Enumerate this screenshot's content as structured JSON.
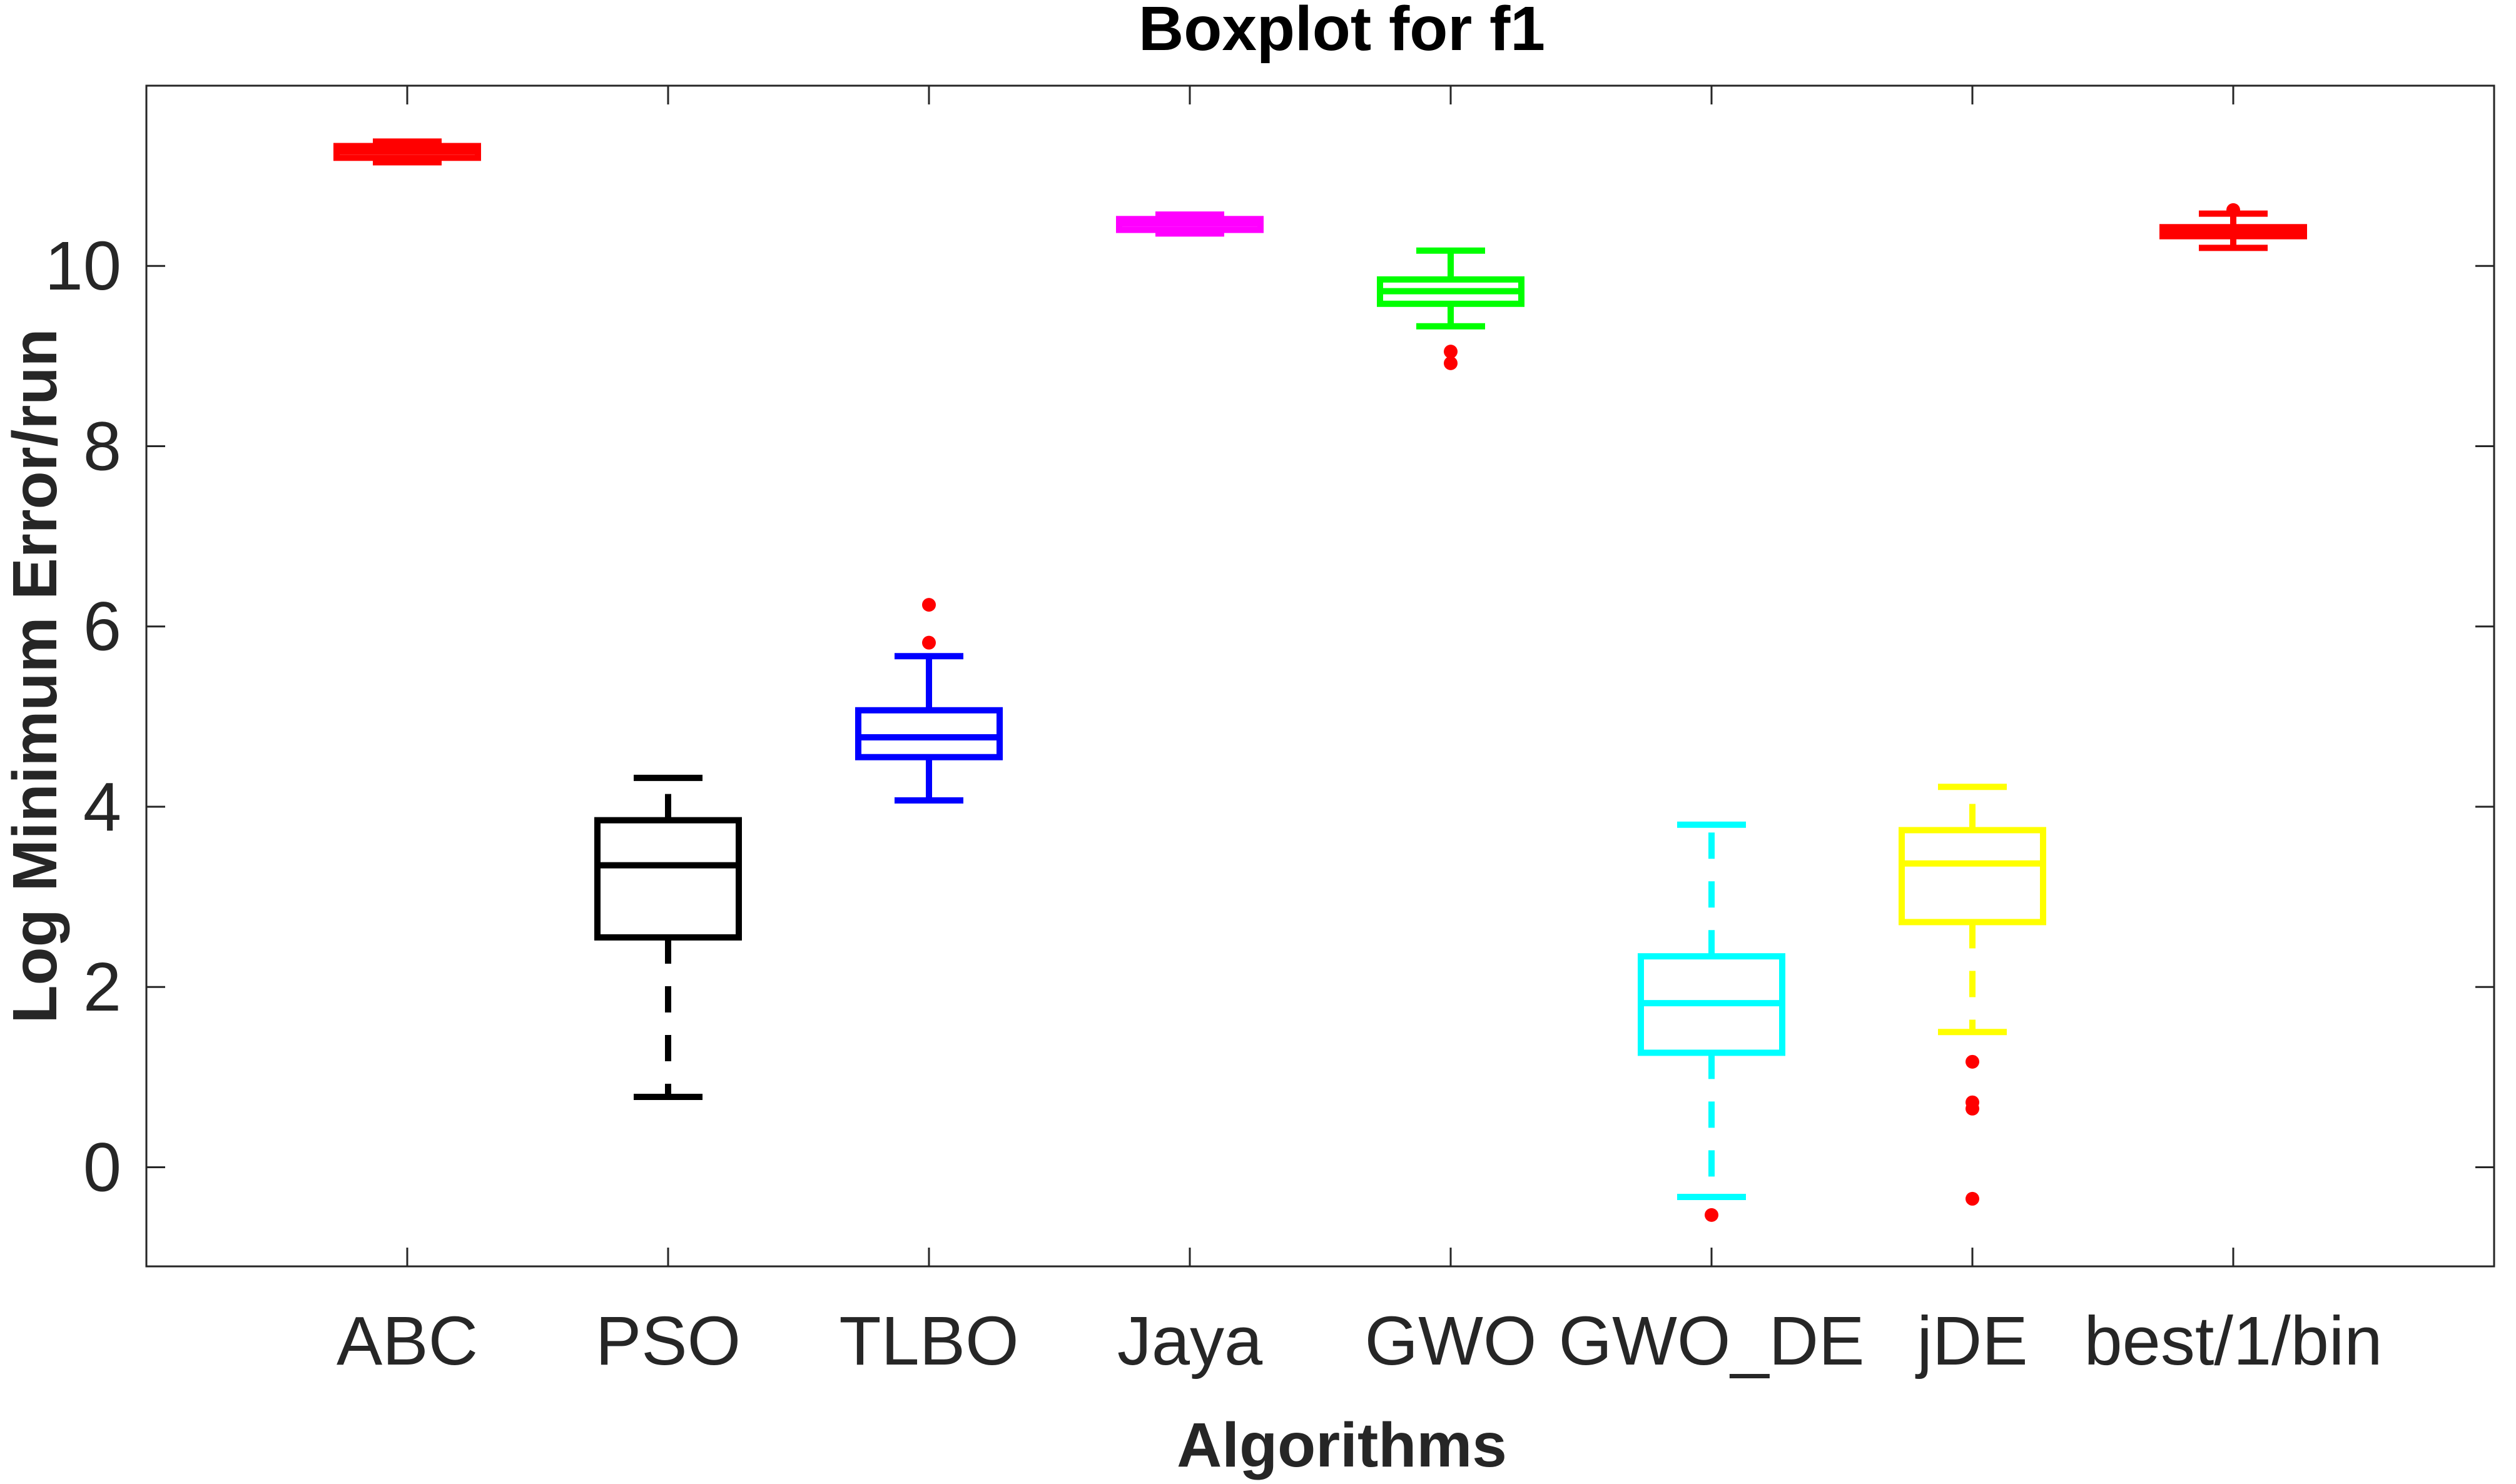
{
  "chart_data": {
    "type": "boxplot",
    "title": "Boxplot for f1",
    "xlabel": "Algorithms",
    "ylabel": "Log Minimum Error/run",
    "ylim": [
      -1.1,
      12.0
    ],
    "yticks": [
      0,
      2,
      4,
      6,
      8,
      10
    ],
    "grid": false,
    "categories": [
      "ABC",
      "PSO",
      "TLBO",
      "Jaya",
      "GWO",
      "GWO_DE",
      "jDE",
      "best/1/bin"
    ],
    "series": [
      {
        "name": "ABC",
        "color": "#ff0000",
        "line_style": "solid",
        "whisker_low": 11.15,
        "q1": 11.2,
        "median": 11.27,
        "q3": 11.33,
        "whisker_high": 11.38,
        "outliers": []
      },
      {
        "name": "PSO",
        "color": "#000000",
        "line_style": "dashed",
        "whisker_low": 0.78,
        "q1": 2.55,
        "median": 3.35,
        "q3": 3.85,
        "whisker_high": 4.32,
        "outliers": []
      },
      {
        "name": "TLBO",
        "color": "#0000ff",
        "line_style": "solid",
        "whisker_low": 4.07,
        "q1": 4.55,
        "median": 4.77,
        "q3": 5.07,
        "whisker_high": 5.67,
        "outliers": [
          5.82,
          6.24
        ]
      },
      {
        "name": "Jaya",
        "color": "#ff00ff",
        "line_style": "solid",
        "whisker_low": 10.36,
        "q1": 10.4,
        "median": 10.47,
        "q3": 10.52,
        "whisker_high": 10.57,
        "outliers": []
      },
      {
        "name": "GWO",
        "color": "#00ff00",
        "line_style": "solid",
        "whisker_low": 9.33,
        "q1": 9.58,
        "median": 9.72,
        "q3": 9.85,
        "whisker_high": 10.17,
        "outliers": [
          8.92,
          9.05
        ]
      },
      {
        "name": "GWO_DE",
        "color": "#00ffff",
        "line_style": "dashed",
        "whisker_low": -0.33,
        "q1": 1.27,
        "median": 1.82,
        "q3": 2.34,
        "whisker_high": 3.8,
        "outliers": [
          -0.53
        ]
      },
      {
        "name": "jDE",
        "color": "#ffff00",
        "line_style": "dashed",
        "whisker_low": 1.5,
        "q1": 2.72,
        "median": 3.37,
        "q3": 3.74,
        "whisker_high": 4.22,
        "outliers": [
          1.17,
          0.72,
          0.65,
          -0.35
        ]
      },
      {
        "name": "best/1/bin",
        "color": "#ff0000",
        "line_style": "solid",
        "whisker_low": 10.2,
        "q1": 10.33,
        "median": 10.38,
        "q3": 10.43,
        "whisker_high": 10.58,
        "outliers": [
          10.62
        ]
      }
    ],
    "outlier_color": "#ff0000"
  }
}
